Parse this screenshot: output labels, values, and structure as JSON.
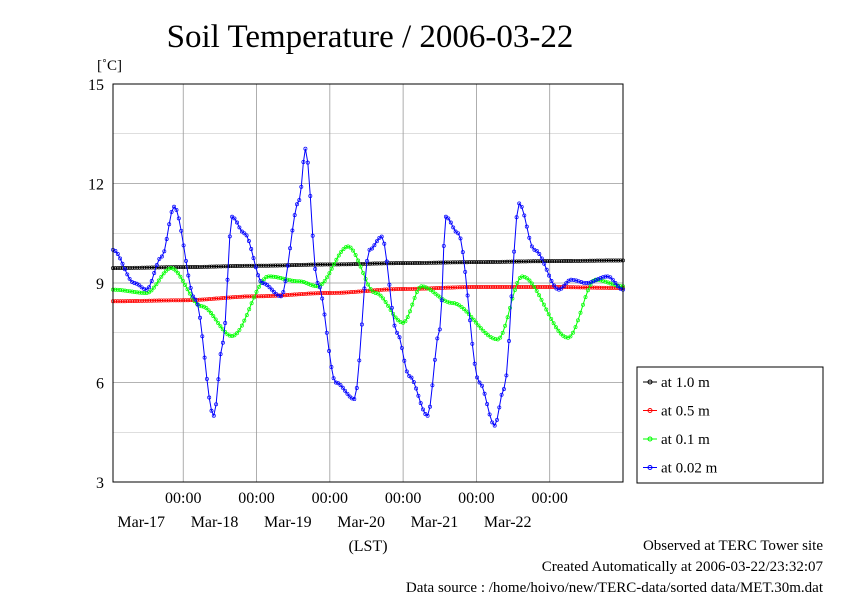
{
  "chart_data": {
    "type": "line",
    "title": "Soil Temperature / 2006-03-22",
    "ylabel": "[˚C]",
    "xlabel": "(LST)",
    "ylim": [
      3,
      15
    ],
    "yticks": [
      3,
      6,
      9,
      12,
      15
    ],
    "grid": true,
    "legend_position": "right",
    "x_range": [
      "2006-03-16 01:00",
      "2006-03-23 00:00"
    ],
    "x_ticks": [
      {
        "time": "00:00",
        "date": "Mar-17",
        "x": "2006-03-17 00:00"
      },
      {
        "time": "00:00",
        "date": "Mar-18",
        "x": "2006-03-18 00:00"
      },
      {
        "time": "00:00",
        "date": "Mar-19",
        "x": "2006-03-19 00:00"
      },
      {
        "time": "00:00",
        "date": "Mar-20",
        "x": "2006-03-20 00:00"
      },
      {
        "time": "00:00",
        "date": "Mar-21",
        "x": "2006-03-21 00:00"
      },
      {
        "time": "00:00",
        "date": "Mar-22",
        "x": "2006-03-22 00:00"
      }
    ],
    "series": [
      {
        "name": "at 1.0 m",
        "color": "#000000",
        "x": [
          "2006-03-16 01:00",
          "2006-03-17 00:00",
          "2006-03-18 00:00",
          "2006-03-19 00:00",
          "2006-03-20 00:00",
          "2006-03-21 00:00",
          "2006-03-22 00:00",
          "2006-03-23 00:00"
        ],
        "y": [
          9.45,
          9.48,
          9.52,
          9.56,
          9.6,
          9.63,
          9.66,
          9.68
        ]
      },
      {
        "name": "at 0.5 m",
        "color": "#ff0000",
        "x": [
          "2006-03-16 01:00",
          "2006-03-17 00:00",
          "2006-03-18 00:00",
          "2006-03-19 00:00",
          "2006-03-20 00:00",
          "2006-03-21 00:00",
          "2006-03-22 00:00",
          "2006-03-23 00:00"
        ],
        "y": [
          8.45,
          8.48,
          8.6,
          8.7,
          8.82,
          8.88,
          8.88,
          8.85
        ]
      },
      {
        "name": "at 0.1 m",
        "color": "#00ff00",
        "x": [
          "2006-03-16 01:00",
          "2006-03-16 12:00",
          "2006-03-16 20:00",
          "2006-03-17 06:00",
          "2006-03-17 16:00",
          "2006-03-18 04:00",
          "2006-03-18 14:00",
          "2006-03-18 20:00",
          "2006-03-19 06:00",
          "2006-03-19 15:00",
          "2006-03-20 00:00",
          "2006-03-20 06:00",
          "2006-03-20 16:00",
          "2006-03-21 07:00",
          "2006-03-21 15:00",
          "2006-03-22 06:00",
          "2006-03-22 15:00",
          "2006-03-23 00:00"
        ],
        "y": [
          8.8,
          8.7,
          9.45,
          8.3,
          7.4,
          9.2,
          9.05,
          8.9,
          10.1,
          8.7,
          7.8,
          8.9,
          8.4,
          7.3,
          9.2,
          7.35,
          9.1,
          8.9
        ]
      },
      {
        "name": "at 0.02 m",
        "color": "#0000ff",
        "x": [
          "2006-03-16 01:00",
          "2006-03-16 08:00",
          "2006-03-16 12:00",
          "2006-03-16 17:00",
          "2006-03-16 21:00",
          "2006-03-17 04:00",
          "2006-03-17 10:00",
          "2006-03-17 13:00",
          "2006-03-17 16:00",
          "2006-03-17 20:00",
          "2006-03-18 02:00",
          "2006-03-18 08:00",
          "2006-03-18 14:00",
          "2006-03-18 16:00",
          "2006-03-18 20:00",
          "2006-03-19 02:00",
          "2006-03-19 08:00",
          "2006-03-19 13:00",
          "2006-03-19 17:00",
          "2006-03-19 22:00",
          "2006-03-20 02:00",
          "2006-03-20 08:00",
          "2006-03-20 12:00",
          "2006-03-20 14:00",
          "2006-03-20 18:00",
          "2006-03-21 01:00",
          "2006-03-21 06:00",
          "2006-03-21 09:00",
          "2006-03-21 14:00",
          "2006-03-21 19:00",
          "2006-03-22 03:00",
          "2006-03-22 07:00",
          "2006-03-22 12:00",
          "2006-03-22 19:00",
          "2006-03-23 00:00"
        ],
        "y": [
          10.0,
          9.0,
          8.8,
          9.8,
          11.3,
          8.5,
          5.0,
          7.2,
          11.0,
          10.5,
          9.0,
          8.6,
          11.5,
          13.05,
          9.0,
          6.0,
          5.5,
          10.0,
          10.4,
          7.5,
          6.2,
          5.0,
          7.6,
          11.0,
          10.5,
          6.0,
          4.7,
          5.8,
          11.4,
          10.0,
          8.8,
          9.1,
          9.0,
          9.2,
          8.8
        ]
      }
    ]
  },
  "footer": {
    "observed": "Observed at TERC Tower site",
    "created": "Created Automatically at 2006-03-22/23:32:07",
    "source": "Data source : /home/hoivo/new/TERC-data/sorted  data/MET.30m.dat"
  }
}
